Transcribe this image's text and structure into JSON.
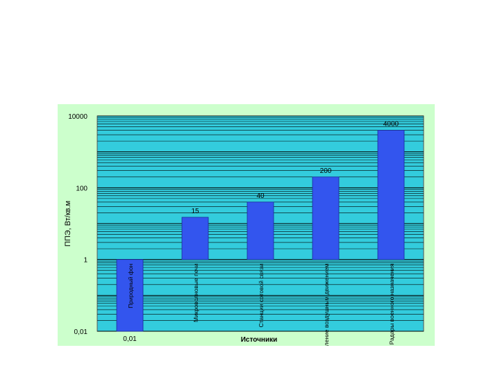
{
  "chart_data": {
    "type": "bar",
    "scale": "log",
    "title": "",
    "xlabel": "Источники",
    "ylabel": "ППЭ, Вт/кв.м",
    "ylim": [
      0.01,
      10000
    ],
    "yticks": [
      "10000",
      "100",
      "1",
      "0,01"
    ],
    "grid": true,
    "legend": "none",
    "categories": [
      "Природный фон",
      "Микроволновые печи",
      "Станции сотовой связи",
      "Радиоуправление воздушным движением",
      "Радары военного назначения"
    ],
    "values": [
      0.01,
      15,
      40,
      200,
      4000
    ],
    "data_labels": [
      "0,01",
      "15",
      "40",
      "200",
      "4000"
    ],
    "colors": {
      "bar": "#3355ee",
      "plot_background": "#33ccdd",
      "frame_background": "#ccffcc",
      "gridline": "#000000"
    }
  }
}
